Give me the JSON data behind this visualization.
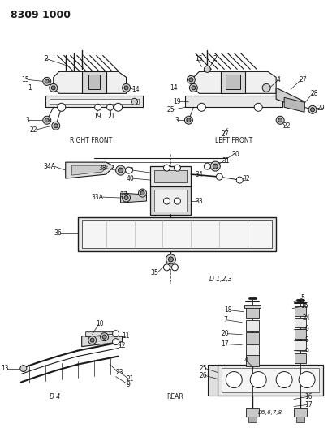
{
  "title": "8309 1000",
  "bg_color": "#ffffff",
  "text_color": "#1a1a1a",
  "line_color": "#1a1a1a",
  "labels": {
    "right_front": "RIGHT FRONT",
    "left_front": "LEFT FRONT",
    "rear": "REAR",
    "d4": "D 4",
    "d123": "D 1,2,3",
    "d4678": "D5,6,7,8"
  }
}
